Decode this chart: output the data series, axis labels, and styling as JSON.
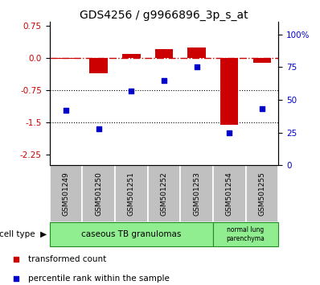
{
  "title": "GDS4256 / g9966896_3p_s_at",
  "categories": [
    "GSM501249",
    "GSM501250",
    "GSM501251",
    "GSM501252",
    "GSM501253",
    "GSM501254",
    "GSM501255"
  ],
  "bar_values": [
    -0.02,
    -0.35,
    0.1,
    0.2,
    0.25,
    -1.55,
    -0.12
  ],
  "dot_values": [
    42,
    28,
    57,
    65,
    75,
    25,
    43
  ],
  "ylim_left": [
    -2.5,
    0.85
  ],
  "yticks_left": [
    0.75,
    0.0,
    -0.75,
    -1.5,
    -2.25
  ],
  "ylim_right": [
    0,
    110
  ],
  "yticks_right": [
    100,
    75,
    50,
    25,
    0
  ],
  "ytick_labels_right": [
    "100%",
    "75",
    "50",
    "25",
    "0"
  ],
  "hline_y": 0.0,
  "dotted_lines": [
    -0.75,
    -1.5
  ],
  "bar_color": "#CC0000",
  "dot_color": "#0000CC",
  "hline_color": "#CC0000",
  "dotted_color": "#000000",
  "group1_count": 5,
  "group2_count": 2,
  "group1_label": "caseous TB granulomas",
  "group2_label": "normal lung\nparenchyma",
  "group_color": "#90EE90",
  "group_edge_color": "#228B22",
  "cell_bg_color": "#C0C0C0",
  "legend_items": [
    {
      "label": "transformed count",
      "color": "#CC0000"
    },
    {
      "label": "percentile rank within the sample",
      "color": "#0000CC"
    }
  ],
  "cell_type_label": "cell type",
  "title_fontsize": 10,
  "tick_fontsize": 7.5,
  "cat_fontsize": 6.5,
  "legend_fontsize": 7.5,
  "group_fontsize": 7.5
}
